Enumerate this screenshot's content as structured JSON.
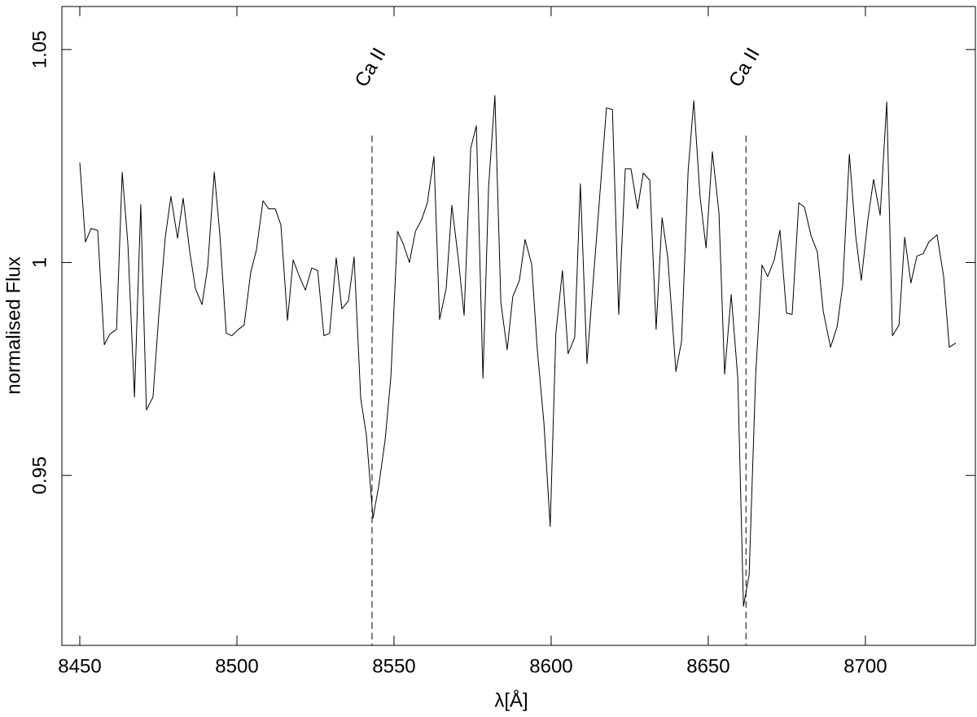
{
  "chart_data": {
    "type": "line",
    "xlabel": "λ[Å]",
    "ylabel": "normalised Flux",
    "color": "#000000",
    "xlim": [
      8444.3,
      8735
    ],
    "ylim": [
      0.9101,
      1.0601
    ],
    "xticks": [
      8450,
      8500,
      8550,
      8600,
      8650,
      8700
    ],
    "yticks": [
      0.95,
      1,
      1.05
    ],
    "annotations": [
      {
        "text": "Ca II",
        "x": 8543.0,
        "y_top": 1.0298
      },
      {
        "text": "Ca II",
        "x": 8662.0,
        "y_top": 1.0298
      }
    ],
    "x": [
      8450.0,
      8451.8,
      8453.6,
      8455.7,
      8457.8,
      8459.6,
      8461.7,
      8463.5,
      8465.3,
      8467.4,
      8469.4,
      8471.2,
      8473.3,
      8475.1,
      8477.2,
      8479.0,
      8481.1,
      8482.9,
      8485.0,
      8486.8,
      8488.9,
      8490.7,
      8492.8,
      8494.6,
      8496.6,
      8498.4,
      8500.5,
      8502.3,
      8504.4,
      8506.2,
      8508.3,
      8510.1,
      8512.2,
      8514.0,
      8516.1,
      8517.9,
      8519.9,
      8521.8,
      8523.8,
      8525.7,
      8527.7,
      8529.5,
      8531.6,
      8533.4,
      8535.5,
      8537.3,
      8539.4,
      8541.2,
      8543.3,
      8545.1,
      8547.2,
      8549.0,
      8551.1,
      8552.9,
      8554.9,
      8556.8,
      8558.8,
      8560.6,
      8562.7,
      8564.5,
      8566.6,
      8568.4,
      8570.5,
      8572.3,
      8574.4,
      8576.2,
      8578.3,
      8580.1,
      8582.1,
      8584.0,
      8586.0,
      8587.8,
      8589.9,
      8591.7,
      8593.8,
      8595.6,
      8597.7,
      8599.7,
      8601.5,
      8603.6,
      8605.4,
      8607.5,
      8609.3,
      8611.4,
      8613.2,
      8615.3,
      8617.6,
      8619.5,
      8621.5,
      8623.6,
      8625.4,
      8627.5,
      8629.3,
      8631.4,
      8633.4,
      8635.3,
      8637.1,
      8639.7,
      8641.5,
      8643.6,
      8645.4,
      8647.4,
      8649.3,
      8651.3,
      8653.4,
      8655.2,
      8657.3,
      8659.4,
      8661.2,
      8663.0,
      8665.1,
      8667.1,
      8668.9,
      8671.0,
      8672.8,
      8674.9,
      8676.7,
      8678.8,
      8680.6,
      8682.7,
      8684.7,
      8686.6,
      8688.9,
      8691.0,
      8692.8,
      8694.9,
      8696.9,
      8698.7,
      8700.8,
      8702.6,
      8704.7,
      8706.8,
      8708.6,
      8710.7,
      8712.5,
      8714.5,
      8716.4,
      8718.4,
      8720.2,
      8722.8,
      8724.9,
      8726.7,
      8728.8
    ],
    "values": [
      1.0235,
      1.0048,
      1.008,
      1.0075,
      0.9807,
      0.9832,
      0.9843,
      1.0212,
      1.0044,
      0.9684,
      1.0136,
      0.9654,
      0.9684,
      0.9872,
      1.0059,
      1.0155,
      1.0057,
      1.0151,
      1.0025,
      0.9939,
      0.9901,
      0.999,
      1.0212,
      1.0063,
      0.9834,
      0.9828,
      0.9843,
      0.9853,
      0.9977,
      1.0029,
      1.0145,
      1.0126,
      1.0126,
      1.0088,
      0.9864,
      1.0006,
      0.9967,
      0.9935,
      0.9987,
      0.9981,
      0.9828,
      0.9834,
      1.0011,
      0.9891,
      0.991,
      1.0013,
      0.9681,
      0.9595,
      0.94,
      0.9474,
      0.9585,
      0.9732,
      1.0073,
      1.0044,
      1.0,
      1.0073,
      1.0101,
      1.014,
      1.0249,
      0.9866,
      0.9939,
      1.0134,
      1.0006,
      0.9876,
      1.0268,
      1.0321,
      0.9728,
      1.0178,
      1.0392,
      0.9906,
      0.9795,
      0.992,
      0.9958,
      1.0054,
      0.9996,
      0.9795,
      0.9623,
      0.938,
      0.9834,
      0.9981,
      0.9786,
      0.9824,
      1.0185,
      0.9763,
      0.9939,
      1.014,
      1.0363,
      1.0359,
      0.9878,
      1.022,
      1.022,
      1.0126,
      1.021,
      1.0193,
      0.9843,
      1.0105,
      1.0013,
      0.9744,
      0.9815,
      1.0216,
      1.038,
      1.0153,
      1.0034,
      1.026,
      1.0117,
      0.9738,
      0.9925,
      0.9728,
      0.9193,
      0.9266,
      0.9738,
      0.9994,
      0.9967,
      1.0006,
      1.0076,
      0.9881,
      0.9878,
      1.014,
      1.013,
      1.0063,
      1.0025,
      0.9885,
      0.9801,
      0.9849,
      0.9948,
      1.0254,
      1.0063,
      0.9958,
      1.0101,
      1.0195,
      1.0111,
      1.0377,
      0.9828,
      0.9853,
      1.0059,
      0.9952,
      1.0015,
      1.0021,
      1.0048,
      1.0065,
      0.9967,
      0.9801,
      0.9811
    ]
  }
}
